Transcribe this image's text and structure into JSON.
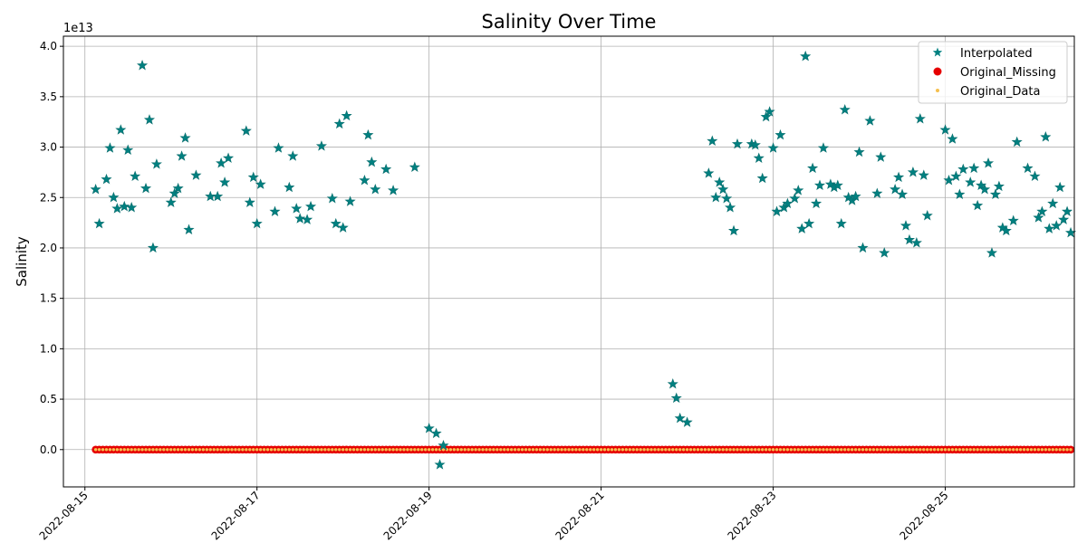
{
  "chart_data": {
    "type": "scatter",
    "title": "Salinity Over Time",
    "ylabel": "Salinity",
    "xlabel": "",
    "y_offset_text": "1e13",
    "x_tick_labels": [
      "2022-08-15",
      "2022-08-17",
      "2022-08-19",
      "2022-08-21",
      "2022-08-23",
      "2022-08-25"
    ],
    "y_tick_labels": [
      "0.0",
      "0.5",
      "1.0",
      "1.5",
      "2.0",
      "2.5",
      "3.0",
      "3.5",
      "4.0"
    ],
    "xlim": [
      "2022-08-14 18:00",
      "2022-08-26 12:00"
    ],
    "ylim": [
      -0.37,
      4.1
    ],
    "grid": true,
    "legend_position": "top-right",
    "series": [
      {
        "name": "Interpolated",
        "marker": "star",
        "color": "#008080",
        "points": [
          [
            "2022-08-15 03:00",
            2.58
          ],
          [
            "2022-08-15 04:00",
            2.24
          ],
          [
            "2022-08-15 06:00",
            2.68
          ],
          [
            "2022-08-15 07:00",
            2.99
          ],
          [
            "2022-08-15 08:00",
            2.5
          ],
          [
            "2022-08-15 09:00",
            2.39
          ],
          [
            "2022-08-15 10:00",
            3.17
          ],
          [
            "2022-08-15 11:00",
            2.41
          ],
          [
            "2022-08-15 12:00",
            2.97
          ],
          [
            "2022-08-15 13:00",
            2.4
          ],
          [
            "2022-08-15 14:00",
            2.71
          ],
          [
            "2022-08-15 16:00",
            3.81
          ],
          [
            "2022-08-15 17:00",
            2.59
          ],
          [
            "2022-08-15 18:00",
            3.27
          ],
          [
            "2022-08-15 19:00",
            2.0
          ],
          [
            "2022-08-15 20:00",
            2.83
          ],
          [
            "2022-08-16 00:00",
            2.45
          ],
          [
            "2022-08-16 01:00",
            2.54
          ],
          [
            "2022-08-16 02:00",
            2.59
          ],
          [
            "2022-08-16 03:00",
            2.91
          ],
          [
            "2022-08-16 04:00",
            3.09
          ],
          [
            "2022-08-16 05:00",
            2.18
          ],
          [
            "2022-08-16 07:00",
            2.72
          ],
          [
            "2022-08-16 11:00",
            2.51
          ],
          [
            "2022-08-16 13:00",
            2.51
          ],
          [
            "2022-08-16 14:00",
            2.84
          ],
          [
            "2022-08-16 15:00",
            2.65
          ],
          [
            "2022-08-16 16:00",
            2.89
          ],
          [
            "2022-08-16 21:00",
            3.16
          ],
          [
            "2022-08-16 22:00",
            2.45
          ],
          [
            "2022-08-16 23:00",
            2.7
          ],
          [
            "2022-08-17 00:00",
            2.24
          ],
          [
            "2022-08-17 01:00",
            2.63
          ],
          [
            "2022-08-17 05:00",
            2.36
          ],
          [
            "2022-08-17 06:00",
            2.99
          ],
          [
            "2022-08-17 09:00",
            2.6
          ],
          [
            "2022-08-17 10:00",
            2.91
          ],
          [
            "2022-08-17 11:00",
            2.39
          ],
          [
            "2022-08-17 12:00",
            2.29
          ],
          [
            "2022-08-17 14:00",
            2.28
          ],
          [
            "2022-08-17 15:00",
            2.41
          ],
          [
            "2022-08-17 18:00",
            3.01
          ],
          [
            "2022-08-17 21:00",
            2.49
          ],
          [
            "2022-08-17 22:00",
            2.24
          ],
          [
            "2022-08-17 23:00",
            3.23
          ],
          [
            "2022-08-18 00:00",
            2.2
          ],
          [
            "2022-08-18 01:00",
            3.31
          ],
          [
            "2022-08-18 02:00",
            2.46
          ],
          [
            "2022-08-18 06:00",
            2.67
          ],
          [
            "2022-08-18 07:00",
            3.12
          ],
          [
            "2022-08-18 08:00",
            2.85
          ],
          [
            "2022-08-18 09:00",
            2.58
          ],
          [
            "2022-08-18 12:00",
            2.78
          ],
          [
            "2022-08-18 14:00",
            2.57
          ],
          [
            "2022-08-18 20:00",
            2.8
          ],
          [
            "2022-08-19 00:00",
            0.21
          ],
          [
            "2022-08-19 02:00",
            0.16
          ],
          [
            "2022-08-19 03:00",
            -0.15
          ],
          [
            "2022-08-19 04:00",
            0.04
          ],
          [
            "2022-08-21 20:00",
            0.65
          ],
          [
            "2022-08-21 21:00",
            0.51
          ],
          [
            "2022-08-21 22:00",
            0.31
          ],
          [
            "2022-08-22 00:00",
            0.27
          ],
          [
            "2022-08-22 06:00",
            2.74
          ],
          [
            "2022-08-22 07:00",
            3.06
          ],
          [
            "2022-08-22 08:00",
            2.5
          ],
          [
            "2022-08-22 09:00",
            2.65
          ],
          [
            "2022-08-22 10:00",
            2.58
          ],
          [
            "2022-08-22 11:00",
            2.49
          ],
          [
            "2022-08-22 12:00",
            2.4
          ],
          [
            "2022-08-22 13:00",
            2.17
          ],
          [
            "2022-08-22 14:00",
            3.03
          ],
          [
            "2022-08-22 18:00",
            3.03
          ],
          [
            "2022-08-22 19:00",
            3.02
          ],
          [
            "2022-08-22 20:00",
            2.89
          ],
          [
            "2022-08-22 21:00",
            2.69
          ],
          [
            "2022-08-22 22:00",
            3.3
          ],
          [
            "2022-08-22 23:00",
            3.35
          ],
          [
            "2022-08-23 00:00",
            2.99
          ],
          [
            "2022-08-23 01:00",
            2.36
          ],
          [
            "2022-08-23 02:00",
            3.12
          ],
          [
            "2022-08-23 03:00",
            2.4
          ],
          [
            "2022-08-23 04:00",
            2.44
          ],
          [
            "2022-08-23 06:00",
            2.49
          ],
          [
            "2022-08-23 07:00",
            2.57
          ],
          [
            "2022-08-23 08:00",
            2.19
          ],
          [
            "2022-08-23 09:00",
            3.9
          ],
          [
            "2022-08-23 10:00",
            2.24
          ],
          [
            "2022-08-23 11:00",
            2.79
          ],
          [
            "2022-08-23 12:00",
            2.44
          ],
          [
            "2022-08-23 13:00",
            2.62
          ],
          [
            "2022-08-23 14:00",
            2.99
          ],
          [
            "2022-08-23 16:00",
            2.63
          ],
          [
            "2022-08-23 17:00",
            2.6
          ],
          [
            "2022-08-23 18:00",
            2.62
          ],
          [
            "2022-08-23 19:00",
            2.24
          ],
          [
            "2022-08-23 20:00",
            3.37
          ],
          [
            "2022-08-23 21:00",
            2.5
          ],
          [
            "2022-08-23 22:00",
            2.47
          ],
          [
            "2022-08-23 23:00",
            2.51
          ],
          [
            "2022-08-24 00:00",
            2.95
          ],
          [
            "2022-08-24 01:00",
            2.0
          ],
          [
            "2022-08-24 03:00",
            3.26
          ],
          [
            "2022-08-24 05:00",
            2.54
          ],
          [
            "2022-08-24 06:00",
            2.9
          ],
          [
            "2022-08-24 07:00",
            1.95
          ],
          [
            "2022-08-24 10:00",
            2.58
          ],
          [
            "2022-08-24 11:00",
            2.7
          ],
          [
            "2022-08-24 12:00",
            2.53
          ],
          [
            "2022-08-24 13:00",
            2.22
          ],
          [
            "2022-08-24 14:00",
            2.08
          ],
          [
            "2022-08-24 15:00",
            2.75
          ],
          [
            "2022-08-24 16:00",
            2.05
          ],
          [
            "2022-08-24 17:00",
            3.28
          ],
          [
            "2022-08-24 18:00",
            2.72
          ],
          [
            "2022-08-24 19:00",
            2.32
          ],
          [
            "2022-08-25 00:00",
            3.17
          ],
          [
            "2022-08-25 01:00",
            2.67
          ],
          [
            "2022-08-25 02:00",
            3.08
          ],
          [
            "2022-08-25 03:00",
            2.71
          ],
          [
            "2022-08-25 04:00",
            2.53
          ],
          [
            "2022-08-25 05:00",
            2.78
          ],
          [
            "2022-08-25 07:00",
            2.65
          ],
          [
            "2022-08-25 08:00",
            2.79
          ],
          [
            "2022-08-25 09:00",
            2.42
          ],
          [
            "2022-08-25 10:00",
            2.62
          ],
          [
            "2022-08-25 11:00",
            2.58
          ],
          [
            "2022-08-25 12:00",
            2.84
          ],
          [
            "2022-08-25 13:00",
            1.95
          ],
          [
            "2022-08-25 14:00",
            2.53
          ],
          [
            "2022-08-25 15:00",
            2.61
          ],
          [
            "2022-08-25 16:00",
            2.2
          ],
          [
            "2022-08-25 17:00",
            2.17
          ],
          [
            "2022-08-25 19:00",
            2.27
          ],
          [
            "2022-08-25 20:00",
            3.05
          ],
          [
            "2022-08-25 23:00",
            2.79
          ],
          [
            "2022-08-26 01:00",
            2.71
          ],
          [
            "2022-08-26 02:00",
            2.3
          ],
          [
            "2022-08-26 03:00",
            2.36
          ],
          [
            "2022-08-26 04:00",
            3.1
          ],
          [
            "2022-08-26 05:00",
            2.19
          ],
          [
            "2022-08-26 06:00",
            2.44
          ],
          [
            "2022-08-26 07:00",
            2.22
          ],
          [
            "2022-08-26 08:00",
            2.6
          ],
          [
            "2022-08-26 09:00",
            2.28
          ],
          [
            "2022-08-26 10:00",
            2.36
          ],
          [
            "2022-08-26 11:00",
            2.15
          ]
        ]
      },
      {
        "name": "Original_Missing",
        "marker": "circle",
        "color": "#e60000",
        "x_range": [
          "2022-08-15 03:00",
          "2022-08-26 11:00"
        ],
        "y_value": 0.0,
        "note_interval_hours": 1
      },
      {
        "name": "Original_Data",
        "marker": "small-circle",
        "color": "#f5c04f",
        "x_range": [
          "2022-08-15 03:00",
          "2022-08-26 11:00"
        ],
        "y_value": 0.0,
        "note_interval_hours": 1
      }
    ]
  }
}
